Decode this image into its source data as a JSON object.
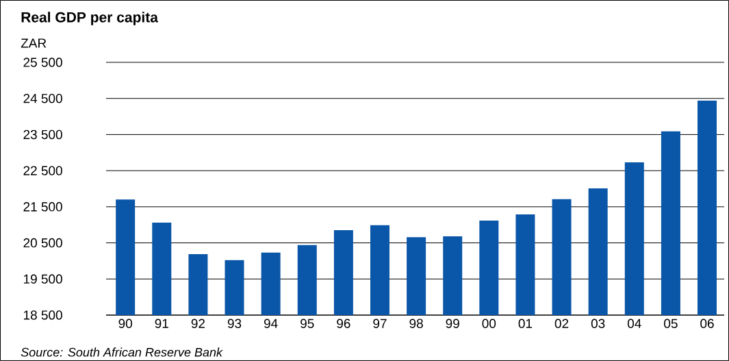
{
  "chart_data": {
    "type": "bar",
    "title": "Real GDP per capita",
    "categories": [
      "90",
      "91",
      "92",
      "93",
      "94",
      "95",
      "96",
      "97",
      "98",
      "99",
      "00",
      "01",
      "02",
      "03",
      "04",
      "05",
      "06"
    ],
    "values": [
      21700,
      21060,
      20190,
      20020,
      20230,
      20440,
      20850,
      20990,
      20660,
      20680,
      21120,
      21290,
      21710,
      22010,
      22730,
      23590,
      24440
    ],
    "color": "#0a56a8",
    "ylim": [
      18500,
      25500
    ],
    "yticks": [
      {
        "value": 18500,
        "label": "18 500"
      },
      {
        "value": 19500,
        "label": "19 500"
      },
      {
        "value": 20500,
        "label": "20 500"
      },
      {
        "value": 21500,
        "label": "21 500"
      },
      {
        "value": 22500,
        "label": "22 500"
      },
      {
        "value": 23500,
        "label": "23 500"
      },
      {
        "value": 24500,
        "label": "24 500"
      },
      {
        "value": 25500,
        "label": "25 500"
      }
    ],
    "grid": "y",
    "annotations": [
      "ZAR",
      "Source: South African Reserve Bank"
    ]
  }
}
